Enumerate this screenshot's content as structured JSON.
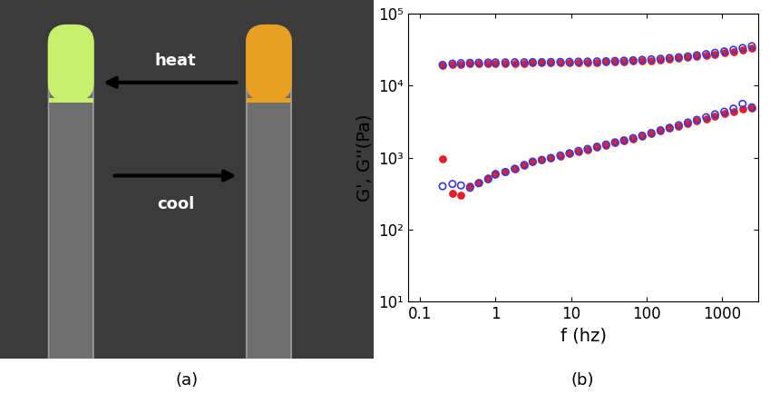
{
  "chart_data": {
    "type": "scatter",
    "caption": "(b)",
    "x_label": "f (hz)",
    "y_label": "G', G''(Pa)",
    "log": true,
    "grid": false,
    "xlim": [
      0.07,
      3000
    ],
    "ylim": [
      10,
      100000
    ],
    "xticks": [
      0.1,
      1,
      10,
      100,
      1000
    ],
    "yticks": [
      {
        "value": 10,
        "label": "10¹"
      },
      {
        "value": 100,
        "label": "10²"
      },
      {
        "value": 1000,
        "label": "10³"
      },
      {
        "value": 10000,
        "label": "10⁴"
      },
      {
        "value": 100000,
        "label": "10⁵"
      }
    ],
    "x": [
      0.2,
      0.27,
      0.35,
      0.46,
      0.6,
      0.8,
      1.0,
      1.35,
      1.8,
      2.4,
      3.1,
      4.1,
      5.4,
      7.2,
      9.5,
      12.5,
      16.5,
      22,
      29,
      38,
      50,
      66,
      87,
      115,
      152,
      200,
      265,
      350,
      460,
      610,
      800,
      1060,
      1400,
      1850,
      2450
    ],
    "series": [
      {
        "color": "#e3202a",
        "marker": "filled",
        "values": [
          19000,
          19800,
          20000,
          20200,
          20300,
          20400,
          20500,
          20500,
          20600,
          20600,
          20700,
          20700,
          20800,
          20800,
          20900,
          21000,
          21100,
          21200,
          21300,
          21500,
          21700,
          21900,
          22200,
          22500,
          22900,
          23400,
          24000,
          24600,
          25400,
          26300,
          27300,
          28500,
          29800,
          31300,
          33000
        ]
      },
      {
        "color": "#3a3ad8",
        "marker": "open",
        "values": [
          19500,
          20300,
          20600,
          20800,
          20900,
          21000,
          21100,
          21100,
          21200,
          21200,
          21300,
          21300,
          21400,
          21400,
          21500,
          21600,
          21700,
          21800,
          21900,
          22100,
          22300,
          22600,
          22900,
          23300,
          23700,
          24300,
          24900,
          25600,
          26500,
          27500,
          28700,
          30000,
          31600,
          33500,
          35500
        ]
      },
      {
        "color": "#e3202a",
        "marker": "filled",
        "values": [
          950,
          320,
          300,
          400,
          450,
          520,
          600,
          640,
          700,
          780,
          870,
          920,
          980,
          1050,
          1130,
          1220,
          1300,
          1400,
          1500,
          1600,
          1700,
          1830,
          1980,
          2150,
          2350,
          2550,
          2750,
          3000,
          3250,
          3500,
          3800,
          4100,
          4400,
          4700,
          4900
        ]
      },
      {
        "color": "#3a3ad8",
        "marker": "open",
        "values": [
          400,
          430,
          410,
          380,
          440,
          500,
          580,
          630,
          700,
          790,
          880,
          930,
          990,
          1070,
          1150,
          1240,
          1320,
          1420,
          1520,
          1630,
          1740,
          1870,
          2020,
          2200,
          2400,
          2600,
          2820,
          3080,
          3350,
          3650,
          4000,
          4350,
          4800,
          5600,
          5000
        ]
      }
    ]
  },
  "photo_panel": {
    "caption": "(a)",
    "arrows": [
      {
        "label": "heat",
        "direction": "left"
      },
      {
        "label": "cool",
        "direction": "right"
      }
    ]
  }
}
